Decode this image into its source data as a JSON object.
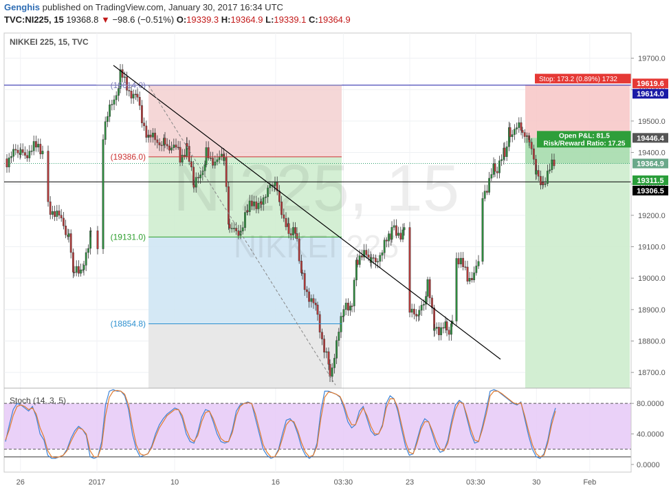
{
  "header": {
    "author": "Genghis",
    "published_text": "published on TradingView.com, January 30, 2017 16:34 UTC",
    "symbol_line": "TVC:NI225, 15",
    "last": "19368.8",
    "change": "−98.6 (−0.51%)",
    "o_label": "O:",
    "o_val": "19339.3",
    "h_label": "H:",
    "h_val": "19364.9",
    "l_label": "L:",
    "l_val": "19339.1",
    "c_label": "C:",
    "c_val": "19364.9"
  },
  "chart_data": [
    {
      "type": "candlestick",
      "title": "NIKKEI 225, 15, TVC",
      "watermark_main": "NI225, 15",
      "watermark_sub": "NIKKEI 225",
      "ylim": [
        18650,
        19780
      ],
      "y_ticks": [
        18700,
        18800,
        18900,
        19000,
        19100,
        19200,
        19300,
        19400,
        19500,
        19600,
        19700
      ],
      "x_ticks": [
        "26",
        "2017",
        "10",
        "16",
        "03:30",
        "23",
        "03:30",
        "30",
        "Feb"
      ],
      "horizontal_lines": [
        {
          "value": 19614.0,
          "color": "#1a1aa6"
        },
        {
          "value": 19306.5,
          "color": "#000000"
        },
        {
          "value": 19364.9,
          "color": "#2a9d6a",
          "style": "dotted"
        }
      ],
      "trendline": {
        "from": 19677,
        "to": 18742,
        "color": "#000000"
      },
      "fibonacci_levels": [
        {
          "label": "(19614.0)",
          "value": 19614.0,
          "color": "#7a7ab8"
        },
        {
          "label": "(19386.0)",
          "value": 19386.0,
          "color": "#cc3333"
        },
        {
          "label": "(19131.0)",
          "value": 19131.0,
          "color": "#2e9e2e"
        },
        {
          "label": "(18854.8)",
          "value": 18854.8,
          "color": "#2b8fcf"
        }
      ],
      "position_tool": {
        "stop_label": "Stop: 173.2 (0.89%) 1732",
        "pnl_label": "Open P&L: 81.5",
        "rr_label": "Risk/Reward Ratio: 17.25",
        "entry": 19446.4,
        "stop": 19619.6,
        "target": 18650
      },
      "price_labels": [
        {
          "value": "19619.6",
          "num": 19619.6,
          "bg": "#e53935",
          "fg": "#ffffff"
        },
        {
          "value": "19614.0",
          "num": 19614.0,
          "bg": "#1a1aa6",
          "fg": "#ffffff"
        },
        {
          "value": "19446.4",
          "num": 19446.4,
          "bg": "#555555",
          "fg": "#ffffff"
        },
        {
          "value": "19364.9",
          "num": 19364.9,
          "bg": "#6aa88a",
          "fg": "#ffffff"
        },
        {
          "value": "19311.5",
          "num": 19311.5,
          "bg": "#2a9d3a",
          "fg": "#ffffff"
        },
        {
          "value": "19306.5",
          "num": 19306.5,
          "bg": "#000000",
          "fg": "#ffffff"
        }
      ],
      "colors": {
        "up": "#2e8b3e",
        "down": "#b23a3a"
      }
    },
    {
      "type": "line",
      "title": "Stoch (14, 3, 5)",
      "ylim": [
        -10,
        100
      ],
      "y_ticks": [
        "80.0000",
        "40.0000",
        "0.0000"
      ],
      "band": [
        20,
        80
      ],
      "series": [
        {
          "name": "%K",
          "color": "#3b82d6",
          "values": [
            30,
            52,
            72,
            80,
            78,
            74,
            70,
            76,
            62,
            40,
            32,
            12,
            8,
            8,
            10,
            12,
            20,
            34,
            44,
            50,
            46,
            38,
            10,
            8,
            10,
            30,
            78,
            96,
            98,
            96,
            96,
            90,
            72,
            40,
            20,
            10,
            12,
            14,
            24,
            40,
            52,
            60,
            66,
            70,
            74,
            72,
            60,
            40,
            30,
            28,
            42,
            62,
            72,
            70,
            56,
            40,
            30,
            28,
            30,
            46,
            70,
            78,
            80,
            82,
            80,
            60,
            40,
            20,
            12,
            8,
            10,
            20,
            40,
            58,
            60,
            54,
            40,
            22,
            12,
            8,
            12,
            28,
            70,
            96,
            96,
            94,
            92,
            88,
            74,
            56,
            48,
            52,
            70,
            76,
            60,
            44,
            38,
            40,
            52,
            80,
            90,
            86,
            70,
            46,
            24,
            12,
            14,
            32,
            50,
            60,
            56,
            40,
            24,
            16,
            18,
            32,
            58,
            78,
            84,
            80,
            60,
            40,
            28,
            30,
            50,
            72,
            96,
            98,
            96,
            92,
            88,
            84,
            80,
            78,
            82,
            60,
            38,
            20,
            10,
            8,
            14,
            32,
            58,
            74
          ]
        },
        {
          "name": "%D",
          "color": "#e07a2e",
          "values": [
            32,
            46,
            64,
            76,
            78,
            76,
            72,
            74,
            66,
            48,
            36,
            18,
            10,
            9,
            10,
            12,
            18,
            30,
            40,
            48,
            46,
            40,
            18,
            10,
            10,
            24,
            64,
            88,
            96,
            97,
            96,
            92,
            78,
            50,
            26,
            14,
            12,
            14,
            22,
            36,
            48,
            56,
            64,
            68,
            72,
            72,
            64,
            46,
            34,
            30,
            38,
            56,
            68,
            70,
            60,
            46,
            34,
            30,
            30,
            42,
            64,
            76,
            80,
            81,
            80,
            66,
            46,
            26,
            16,
            10,
            10,
            18,
            34,
            52,
            58,
            56,
            44,
            28,
            16,
            10,
            12,
            24,
            60,
            88,
            95,
            94,
            92,
            89,
            78,
            62,
            52,
            52,
            64,
            74,
            64,
            50,
            40,
            40,
            50,
            74,
            86,
            86,
            74,
            52,
            30,
            16,
            14,
            28,
            46,
            56,
            56,
            44,
            30,
            20,
            18,
            28,
            52,
            72,
            82,
            80,
            64,
            46,
            32,
            30,
            46,
            66,
            90,
            96,
            96,
            93,
            89,
            85,
            81,
            79,
            81,
            64,
            44,
            26,
            14,
            10,
            12,
            28,
            52,
            70
          ]
        }
      ]
    }
  ]
}
